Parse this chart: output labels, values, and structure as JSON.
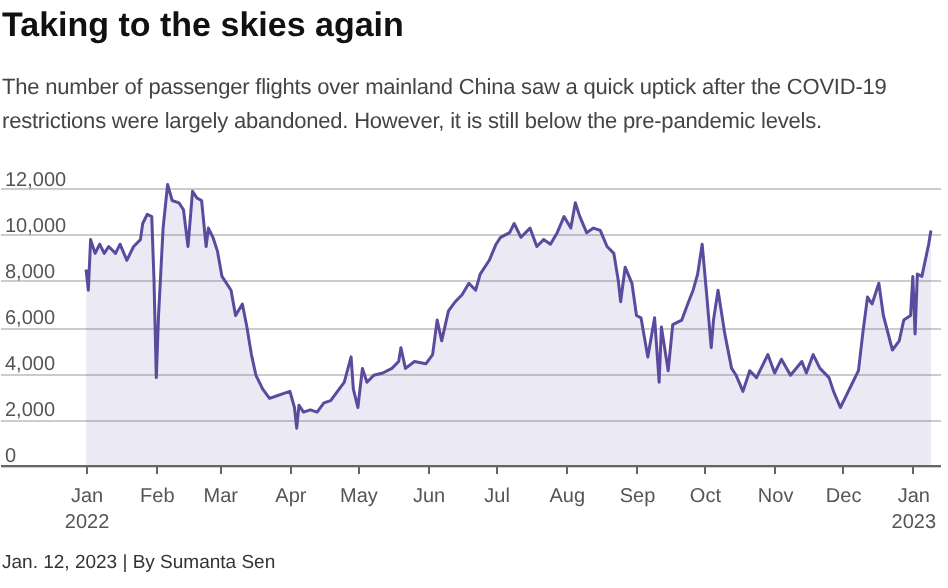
{
  "chart_data": {
    "type": "area",
    "title": "Taking to the skies again",
    "subtitle": "The number of passenger flights over mainland China saw a quick uptick after the COVID-19 restrictions were largely abandoned. However, it is still below the pre-pandemic levels.",
    "annotations": [
      "Jan. 12, 2023 | By Sumanta Sen"
    ],
    "xlim": [
      "2021-11-24",
      "2023-01-13"
    ],
    "xticks": [
      {
        "value": "2022-01-01",
        "label": "Jan 2022"
      },
      {
        "value": "2022-02-01",
        "label": "Feb"
      },
      {
        "value": "2022-03-01",
        "label": "Mar"
      },
      {
        "value": "2022-04-01",
        "label": "Apr"
      },
      {
        "value": "2022-05-01",
        "label": "May"
      },
      {
        "value": "2022-06-01",
        "label": "Jun"
      },
      {
        "value": "2022-07-01",
        "label": "Jul"
      },
      {
        "value": "2022-08-01",
        "label": "Aug"
      },
      {
        "value": "2022-09-01",
        "label": "Sep"
      },
      {
        "value": "2022-10-01",
        "label": "Oct"
      },
      {
        "value": "2022-11-01",
        "label": "Nov"
      },
      {
        "value": "2022-12-01",
        "label": "Dec"
      },
      {
        "value": "2023-01-01",
        "label": "Jan 2023"
      }
    ],
    "ylim": [
      0,
      13000
    ],
    "yticks": [
      {
        "value": 0,
        "label": "0"
      },
      {
        "value": 2000,
        "label": "2,000"
      },
      {
        "value": 4000,
        "label": "4,000"
      },
      {
        "value": 6000,
        "label": "6,000"
      },
      {
        "value": 8000,
        "label": "8,000"
      },
      {
        "value": 10000,
        "label": "10,000"
      },
      {
        "value": 12000,
        "label": "12,000"
      }
    ],
    "grid": "y",
    "series": [
      {
        "color": "#5b4a9e",
        "x": [
          "2022-01-01",
          "2022-01-02",
          "2022-01-03",
          "2022-01-05",
          "2022-01-07",
          "2022-01-09",
          "2022-01-11",
          "2022-01-14",
          "2022-01-16",
          "2022-01-19",
          "2022-01-22",
          "2022-01-25",
          "2022-01-26",
          "2022-01-28",
          "2022-01-30",
          "2022-01-31",
          "2022-02-01",
          "2022-02-02",
          "2022-02-04",
          "2022-02-06",
          "2022-02-08",
          "2022-02-11",
          "2022-02-13",
          "2022-02-15",
          "2022-02-17",
          "2022-02-19",
          "2022-02-21",
          "2022-02-23",
          "2022-02-24",
          "2022-02-26",
          "2022-02-28",
          "2022-03-02",
          "2022-03-04",
          "2022-03-06",
          "2022-03-08",
          "2022-03-11",
          "2022-03-13",
          "2022-03-15",
          "2022-03-17",
          "2022-03-20",
          "2022-03-23",
          "2022-03-26",
          "2022-03-29",
          "2022-04-01",
          "2022-04-03",
          "2022-04-04",
          "2022-04-05",
          "2022-04-07",
          "2022-04-10",
          "2022-04-13",
          "2022-04-16",
          "2022-04-19",
          "2022-04-22",
          "2022-04-25",
          "2022-04-28",
          "2022-04-29",
          "2022-05-01",
          "2022-05-03",
          "2022-05-05",
          "2022-05-08",
          "2022-05-12",
          "2022-05-16",
          "2022-05-19",
          "2022-05-20",
          "2022-05-22",
          "2022-05-26",
          "2022-05-31",
          "2022-06-03",
          "2022-06-05",
          "2022-06-07",
          "2022-06-10",
          "2022-06-13",
          "2022-06-16",
          "2022-06-19",
          "2022-06-22",
          "2022-06-24",
          "2022-06-28",
          "2022-07-01",
          "2022-07-03",
          "2022-07-07",
          "2022-07-09",
          "2022-07-12",
          "2022-07-16",
          "2022-07-19",
          "2022-07-22",
          "2022-07-25",
          "2022-07-28",
          "2022-07-31",
          "2022-08-03",
          "2022-08-05",
          "2022-08-07",
          "2022-08-10",
          "2022-08-13",
          "2022-08-16",
          "2022-08-19",
          "2022-08-22",
          "2022-08-24",
          "2022-08-25",
          "2022-08-27",
          "2022-08-30",
          "2022-09-01",
          "2022-09-03",
          "2022-09-06",
          "2022-09-09",
          "2022-09-11",
          "2022-09-12",
          "2022-09-15",
          "2022-09-17",
          "2022-09-21",
          "2022-09-24",
          "2022-09-26",
          "2022-09-28",
          "2022-09-30",
          "2022-10-02",
          "2022-10-04",
          "2022-10-05",
          "2022-10-07",
          "2022-10-10",
          "2022-10-13",
          "2022-10-15",
          "2022-10-18",
          "2022-10-21",
          "2022-10-24",
          "2022-10-29",
          "2022-11-01",
          "2022-11-04",
          "2022-11-08",
          "2022-11-13",
          "2022-11-15",
          "2022-11-18",
          "2022-11-21",
          "2022-11-25",
          "2022-11-27",
          "2022-11-30",
          "2022-12-02",
          "2022-12-05",
          "2022-12-08",
          "2022-12-10",
          "2022-12-12",
          "2022-12-14",
          "2022-12-17",
          "2022-12-19",
          "2022-12-23",
          "2022-12-26",
          "2022-12-28",
          "2022-12-31",
          "2023-01-01",
          "2023-01-02",
          "2023-01-03",
          "2023-01-05",
          "2023-01-08",
          "2023-01-09"
        ],
        "values": [
          8500,
          7600,
          9800,
          9200,
          9600,
          9200,
          9500,
          9200,
          9600,
          8900,
          9500,
          9800,
          10500,
          10900,
          10800,
          8000,
          3800,
          6500,
          10300,
          12200,
          11500,
          11400,
          11100,
          9500,
          11900,
          11600,
          11500,
          9500,
          10300,
          9900,
          9300,
          8200,
          7900,
          7600,
          6500,
          7000,
          6000,
          4800,
          3900,
          3300,
          2900,
          3000,
          3100,
          3200,
          2500,
          1600,
          2600,
          2300,
          2400,
          2300,
          2700,
          2800,
          3200,
          3600,
          4700,
          3300,
          2500,
          4200,
          3600,
          3900,
          4000,
          4200,
          4500,
          5100,
          4200,
          4500,
          4400,
          4800,
          6300,
          5400,
          6700,
          7100,
          7400,
          7900,
          7600,
          8300,
          8900,
          9600,
          9900,
          10100,
          10500,
          9900,
          10300,
          9500,
          9800,
          9600,
          10100,
          10800,
          10300,
          11400,
          10800,
          10100,
          10300,
          10200,
          9500,
          9200,
          8000,
          7100,
          8600,
          7900,
          6500,
          6400,
          4700,
          6400,
          3600,
          6000,
          4100,
          6100,
          6300,
          7100,
          7600,
          8300,
          9600,
          7400,
          5100,
          6300,
          7600,
          5700,
          4200,
          3900,
          3200,
          4100,
          3800,
          4800,
          4000,
          4600,
          3900,
          4500,
          4000,
          4800,
          4200,
          3800,
          3200,
          2500,
          2900,
          3500,
          4100,
          5800,
          7300,
          7000,
          7900,
          6500,
          5000,
          5400,
          6300,
          6500,
          8200,
          5700,
          8300,
          8200,
          9600,
          10200
        ]
      }
    ]
  }
}
